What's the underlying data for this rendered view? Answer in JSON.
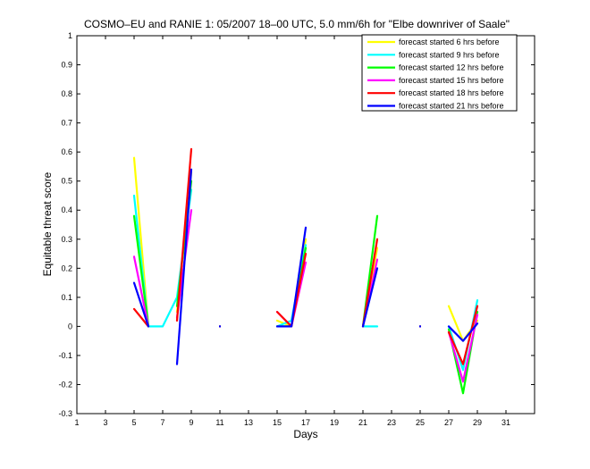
{
  "chart_data": {
    "type": "line",
    "title": "COSMO–EU and RANIE 1: 05/2007 18–00 UTC, 5.0 mm/6h for \"Elbe downriver of Saale\"",
    "xlabel": "Days",
    "ylabel": "Equitable threat score",
    "xlim": [
      1,
      33
    ],
    "ylim": [
      -0.3,
      1
    ],
    "xticks": [
      1,
      3,
      5,
      7,
      9,
      11,
      13,
      15,
      17,
      19,
      21,
      23,
      25,
      27,
      29,
      31
    ],
    "xtick_labels": [
      "1",
      "3",
      "5",
      "7",
      "9",
      "11",
      "13",
      "15",
      "17",
      "19",
      "21",
      "23",
      "25",
      "27",
      "29",
      "31"
    ],
    "yticks": [
      -0.3,
      -0.2,
      -0.1,
      0,
      0.1,
      0.2,
      0.3,
      0.4,
      0.5,
      0.6,
      0.7,
      0.8,
      0.9,
      1
    ],
    "ytick_labels": [
      "-0.3",
      "-0.2",
      "-0.1",
      "0",
      "0.1",
      "0.2",
      "0.3",
      "0.4",
      "0.5",
      "0.6",
      "0.7",
      "0.8",
      "0.9",
      "1"
    ],
    "grid": false,
    "legend_position": "top-right",
    "series": [
      {
        "name": "forecast started 6 hrs before",
        "color": "#ffff00",
        "x": [
          5,
          6,
          7,
          8,
          9,
          11,
          15,
          16,
          17,
          21,
          22,
          25,
          27,
          28,
          29
        ],
        "y": [
          0.58,
          0.0,
          null,
          0.05,
          0.53,
          0.0,
          0.02,
          0.0,
          0.3,
          0.0,
          0.27,
          0.0,
          0.07,
          -0.05,
          0.02
        ]
      },
      {
        "name": "forecast started 9 hrs before",
        "color": "#00ffff",
        "x": [
          5,
          6,
          7,
          8,
          9,
          11,
          15,
          16,
          17,
          21,
          22,
          25,
          27,
          28,
          29
        ],
        "y": [
          0.45,
          0.0,
          0.0,
          0.1,
          0.47,
          0.0,
          0.0,
          0.02,
          0.28,
          0.0,
          0.0,
          0.0,
          0.0,
          -0.15,
          0.09
        ]
      },
      {
        "name": "forecast started 12 hrs before",
        "color": "#00ff00",
        "x": [
          5,
          6,
          8,
          9,
          11,
          15,
          16,
          17,
          21,
          22,
          25,
          27,
          28,
          29
        ],
        "y": [
          0.38,
          0.0,
          0.07,
          0.5,
          0.0,
          0.0,
          0.0,
          0.27,
          0.0,
          0.38,
          0.0,
          -0.01,
          -0.23,
          0.05
        ]
      },
      {
        "name": "forecast started 15 hrs before",
        "color": "#ff00ff",
        "x": [
          5,
          6,
          8,
          9,
          11,
          15,
          16,
          17,
          21,
          22,
          25,
          27,
          28,
          29
        ],
        "y": [
          0.24,
          0.0,
          0.03,
          0.4,
          0.0,
          0.05,
          0.0,
          0.22,
          0.0,
          0.23,
          0.0,
          -0.02,
          -0.19,
          0.04
        ]
      },
      {
        "name": "forecast started 18 hrs before",
        "color": "#ff0000",
        "x": [
          5,
          6,
          8,
          9,
          11,
          15,
          16,
          17,
          21,
          22,
          25,
          27,
          28,
          29
        ],
        "y": [
          0.06,
          0.0,
          0.02,
          0.61,
          0.0,
          0.05,
          0.0,
          0.25,
          0.0,
          0.3,
          0.0,
          -0.02,
          -0.13,
          0.07
        ]
      },
      {
        "name": "forecast started 21 hrs before",
        "color": "#0000ff",
        "x": [
          5,
          6,
          8,
          9,
          11,
          15,
          16,
          17,
          21,
          22,
          25,
          27,
          28,
          29
        ],
        "y": [
          0.15,
          0.0,
          -0.13,
          0.54,
          0.0,
          0.0,
          0.0,
          0.34,
          0.0,
          0.2,
          0.0,
          0.0,
          -0.05,
          0.01
        ]
      }
    ]
  }
}
